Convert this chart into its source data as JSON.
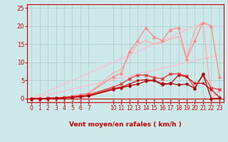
{
  "title": "",
  "xlabel": "Vent moyen/en rafales ( km/h )",
  "ylabel": "",
  "bg_color": "#cce8e8",
  "grid_color": "#aacccc",
  "xlim": [
    -0.5,
    23.5
  ],
  "ylim": [
    -1,
    26
  ],
  "yticks": [
    0,
    5,
    10,
    15,
    20,
    25
  ],
  "xticks": [
    0,
    1,
    2,
    3,
    4,
    5,
    6,
    7,
    10,
    11,
    12,
    13,
    14,
    15,
    16,
    17,
    18,
    19,
    20,
    21,
    22,
    23
  ],
  "lines": [
    {
      "x": [
        0,
        21
      ],
      "y": [
        0,
        21
      ],
      "color": "#ffbbcc",
      "lw": 0.9,
      "marker": null,
      "ms": 0
    },
    {
      "x": [
        0,
        23
      ],
      "y": [
        0,
        12
      ],
      "color": "#ffbbcc",
      "lw": 0.9,
      "marker": null,
      "ms": 0
    },
    {
      "x": [
        0,
        1,
        2,
        3,
        4,
        5,
        6,
        7,
        10,
        11,
        12,
        13,
        14,
        15,
        16,
        17,
        18,
        19,
        20,
        21,
        22,
        23
      ],
      "y": [
        0,
        0,
        0.1,
        0.2,
        0.4,
        0.7,
        1.1,
        1.5,
        6,
        7,
        13,
        16,
        19.5,
        17,
        16,
        19,
        19.5,
        11,
        16,
        21,
        20,
        6
      ],
      "color": "#ff8888",
      "lw": 0.9,
      "marker": "^",
      "ms": 2.5
    },
    {
      "x": [
        0,
        1,
        2,
        3,
        4,
        5,
        6,
        7,
        10,
        11,
        12,
        13,
        14,
        15,
        16,
        17,
        18,
        19,
        20,
        21,
        22,
        23
      ],
      "y": [
        0,
        0,
        0.1,
        0.2,
        0.4,
        0.7,
        1.1,
        1.5,
        7,
        8,
        12,
        15,
        16,
        15,
        15.5,
        16.5,
        17,
        11,
        19,
        21,
        0,
        2
      ],
      "color": "#ffaaaa",
      "lw": 0.9,
      "marker": null,
      "ms": 0
    },
    {
      "x": [
        0,
        1,
        2,
        3,
        4,
        5,
        6,
        7,
        10,
        11,
        12,
        13,
        14,
        15,
        16,
        17,
        18,
        19,
        20,
        21,
        22,
        23
      ],
      "y": [
        0,
        0,
        0.1,
        0.2,
        0.3,
        0.5,
        0.8,
        1.1,
        3.2,
        4,
        5.5,
        6.5,
        6.5,
        5.8,
        5.5,
        6.8,
        6.8,
        6.2,
        3,
        6.5,
        3,
        2.5
      ],
      "color": "#ee3333",
      "lw": 0.9,
      "marker": "x",
      "ms": 2.5
    },
    {
      "x": [
        0,
        1,
        2,
        3,
        4,
        5,
        6,
        7,
        10,
        11,
        12,
        13,
        14,
        15,
        16,
        17,
        18,
        19,
        20,
        21,
        22,
        23
      ],
      "y": [
        0,
        0,
        0.1,
        0.15,
        0.25,
        0.4,
        0.6,
        0.8,
        2.8,
        3.2,
        4,
        5,
        5.2,
        5.0,
        4.2,
        4.0,
        6.5,
        6.0,
        4.2,
        4.2,
        2.5,
        0.4
      ],
      "color": "#cc1111",
      "lw": 0.9,
      "marker": "s",
      "ms": 2.0
    },
    {
      "x": [
        0,
        1,
        2,
        3,
        4,
        5,
        6,
        7,
        10,
        11,
        12,
        13,
        14,
        15,
        16,
        17,
        18,
        19,
        20,
        21,
        22,
        23
      ],
      "y": [
        0,
        0,
        0.05,
        0.1,
        0.2,
        0.3,
        0.5,
        0.7,
        2.5,
        3.0,
        3.5,
        4.0,
        4.8,
        5.0,
        3.8,
        4.2,
        3.8,
        4.0,
        2.8,
        6.8,
        0,
        0.1
      ],
      "color": "#aa0000",
      "lw": 0.9,
      "marker": "D",
      "ms": 1.8
    }
  ],
  "arrow_symbol": "↘",
  "arrow_color": "#cc0000",
  "spine_color": "#cc0000",
  "tick_color": "#cc0000",
  "label_color": "#cc0000"
}
